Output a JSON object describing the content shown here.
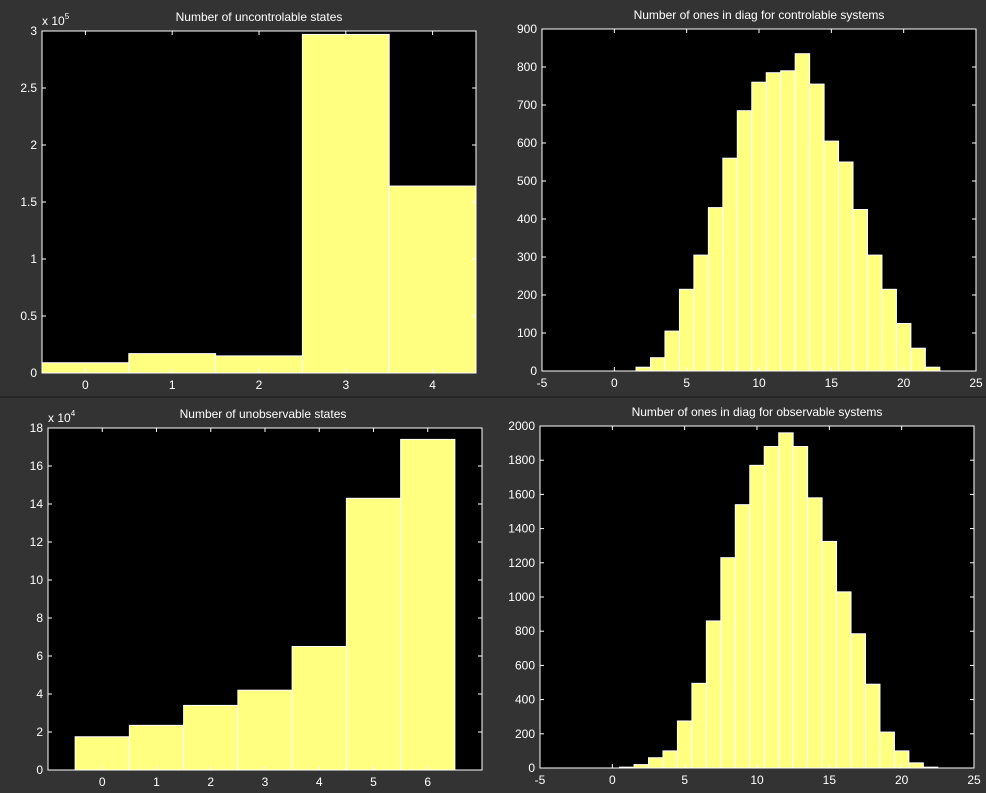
{
  "colors": {
    "figure_background": "#333333",
    "axes_background": "#000000",
    "bar_fill": "#ffff80",
    "bar_edge": "#ffffff",
    "text": "#ffffff"
  },
  "chart_data": [
    {
      "type": "bar",
      "title": "Number of uncontrolable states",
      "xlabel": "",
      "ylabel": "",
      "categories": [
        "0",
        "1",
        "2",
        "3",
        "4"
      ],
      "values": [
        9000,
        17000,
        15000,
        297000,
        164000
      ],
      "xlim": [
        -0.5,
        4.5
      ],
      "ylim": [
        0,
        300000
      ],
      "xticks": [
        0,
        1,
        2,
        3,
        4
      ],
      "yticks": [
        0,
        50000,
        100000,
        150000,
        200000,
        250000,
        300000
      ],
      "ytick_labels": [
        "0",
        "0.5",
        "1",
        "1.5",
        "2",
        "2.5",
        "3"
      ],
      "y_exponent_label": {
        "base": "x 10",
        "exp": "5"
      },
      "bar_width": 1,
      "grid": false
    },
    {
      "type": "bar",
      "title": "Number of ones in diag for controlable systems",
      "xlabel": "",
      "ylabel": "",
      "x": [
        2,
        3,
        4,
        5,
        6,
        7,
        8,
        9,
        10,
        11,
        12,
        13,
        14,
        15,
        16,
        17,
        18,
        19,
        20,
        21,
        22
      ],
      "values": [
        10,
        35,
        105,
        215,
        305,
        430,
        560,
        685,
        760,
        785,
        790,
        835,
        755,
        605,
        550,
        425,
        305,
        215,
        125,
        60,
        10
      ],
      "xlim": [
        -5,
        25
      ],
      "ylim": [
        0,
        900
      ],
      "xticks": [
        -5,
        0,
        5,
        10,
        15,
        20,
        25
      ],
      "xtick_labels": [
        "-5",
        "0",
        "5",
        "10",
        "15",
        "20",
        "25"
      ],
      "yticks": [
        0,
        100,
        200,
        300,
        400,
        500,
        600,
        700,
        800,
        900
      ],
      "ytick_labels": [
        "0",
        "100",
        "200",
        "300",
        "400",
        "500",
        "600",
        "700",
        "800",
        "900"
      ],
      "bar_width": 1,
      "grid": false
    },
    {
      "type": "bar",
      "title": "Number of unobservable states",
      "xlabel": "",
      "ylabel": "",
      "categories": [
        "0",
        "1",
        "2",
        "3",
        "4",
        "5",
        "6"
      ],
      "values": [
        17500,
        23500,
        34000,
        42000,
        65000,
        143000,
        174000
      ],
      "xlim": [
        -1,
        7
      ],
      "ylim": [
        0,
        180000
      ],
      "xticks": [
        0,
        1,
        2,
        3,
        4,
        5,
        6
      ],
      "yticks": [
        0,
        20000,
        40000,
        60000,
        80000,
        100000,
        120000,
        140000,
        160000,
        180000
      ],
      "ytick_labels": [
        "0",
        "2",
        "4",
        "6",
        "8",
        "10",
        "12",
        "14",
        "16",
        "18"
      ],
      "y_exponent_label": {
        "base": "x 10",
        "exp": "4"
      },
      "bar_width": 1,
      "grid": false
    },
    {
      "type": "bar",
      "title": "Number of ones in diag for observable systems",
      "xlabel": "",
      "ylabel": "",
      "x": [
        1,
        2,
        3,
        4,
        5,
        6,
        7,
        8,
        9,
        10,
        11,
        12,
        13,
        14,
        15,
        16,
        17,
        18,
        19,
        20,
        21,
        22
      ],
      "values": [
        5,
        20,
        60,
        100,
        275,
        495,
        860,
        1230,
        1540,
        1770,
        1880,
        1960,
        1880,
        1580,
        1325,
        1030,
        785,
        490,
        210,
        100,
        30,
        5
      ],
      "xlim": [
        -5,
        25
      ],
      "ylim": [
        0,
        2000
      ],
      "xticks": [
        -5,
        0,
        5,
        10,
        15,
        20,
        25
      ],
      "xtick_labels": [
        "-5",
        "0",
        "5",
        "10",
        "15",
        "20",
        "25"
      ],
      "yticks": [
        0,
        200,
        400,
        600,
        800,
        1000,
        1200,
        1400,
        1600,
        1800,
        2000
      ],
      "ytick_labels": [
        "0",
        "200",
        "400",
        "600",
        "800",
        "1000",
        "1200",
        "1400",
        "1600",
        "1800",
        "2000"
      ],
      "bar_width": 1,
      "grid": false
    }
  ]
}
